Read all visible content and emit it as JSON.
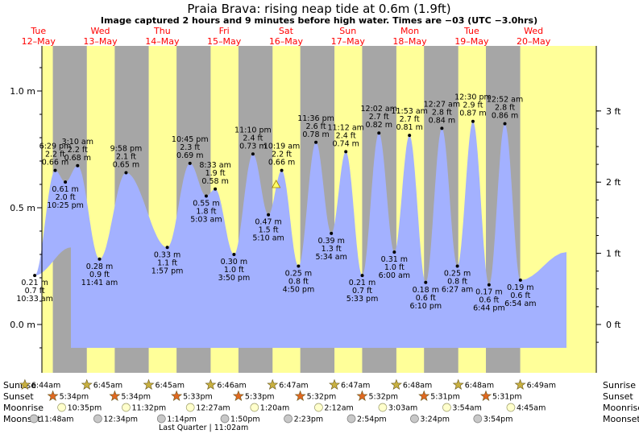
{
  "title": "Praia Brava: rising  neap tide at 0.6m (1.9ft)",
  "subtitle": "Image captured 2 hours and 9 minutes before high water. Times are −03 (UTC −3.0hrs)",
  "colors": {
    "water": "#a3b1ff",
    "day": "#ffff99",
    "night": "#a6a6a6",
    "day_label": "#ff0000",
    "sunrise_star": "#c8b040",
    "sunset_star": "#e06820",
    "moonrise": "#ffffcc",
    "moonset": "#c8c8c8"
  },
  "chart_data": {
    "type": "area",
    "x_start": "2025-05-12 00:00",
    "ylim": [
      -0.1,
      1.18
    ],
    "left_ticks": [
      {
        "v": 1.0,
        "label": "1.0 m"
      },
      {
        "v": 0.5,
        "label": "0.5 m"
      },
      {
        "v": 0.0,
        "label": "0.0 m"
      }
    ],
    "right_ticks": [
      {
        "v": 0.9144,
        "label": "3 ft"
      },
      {
        "v": 0.6096,
        "label": "2 ft"
      },
      {
        "v": 0.3048,
        "label": "1 ft"
      },
      {
        "v": 0.0,
        "label": "0 ft"
      }
    ],
    "days": [
      {
        "dow": "Tue",
        "date": "12–May"
      },
      {
        "dow": "Wed",
        "date": "13–May"
      },
      {
        "dow": "Thu",
        "date": "14–May"
      },
      {
        "dow": "Fri",
        "date": "15–May"
      },
      {
        "dow": "Sat",
        "date": "16–May"
      },
      {
        "dow": "Sun",
        "date": "17–May"
      },
      {
        "dow": "Mon",
        "date": "18–May"
      },
      {
        "dow": "Tue",
        "date": "19–May"
      },
      {
        "dow": "Wed",
        "date": "20–May"
      }
    ],
    "tides": [
      {
        "time": "10:33 am",
        "m": "0.21 m",
        "ft": "0.7 ft",
        "d": 0,
        "h": 10.55,
        "v": 0.21,
        "type": "low"
      },
      {
        "time": "6:29 pm",
        "m": "0.66 m",
        "ft": "2.2 ft",
        "d": 0,
        "h": 18.48,
        "v": 0.66,
        "type": "high"
      },
      {
        "time": "10:25 pm",
        "m": "0.61 m",
        "ft": "2.0 ft",
        "d": 0,
        "h": 22.42,
        "v": 0.61,
        "type": "low"
      },
      {
        "time": "3:10 am",
        "m": "0.68 m",
        "ft": "2.2 ft",
        "d": 1,
        "h": 3.17,
        "v": 0.68,
        "type": "high"
      },
      {
        "time": "11:41 am",
        "m": "0.28 m",
        "ft": "0.9 ft",
        "d": 1,
        "h": 11.68,
        "v": 0.28,
        "type": "low"
      },
      {
        "time": "9:58 pm",
        "m": "0.65 m",
        "ft": "2.1 ft",
        "d": 1,
        "h": 21.97,
        "v": 0.65,
        "type": "high"
      },
      {
        "time": "1:57 pm",
        "m": "0.33 m",
        "ft": "1.1 ft",
        "d": 2,
        "h": 13.95,
        "v": 0.33,
        "type": "low"
      },
      {
        "time": "10:45 pm",
        "m": "0.69 m",
        "ft": "2.3 ft",
        "d": 2,
        "h": 22.75,
        "v": 0.69,
        "type": "high"
      },
      {
        "time": "5:03 am",
        "m": "0.55 m",
        "ft": "1.8 ft",
        "d": 3,
        "h": 5.05,
        "v": 0.55,
        "type": "low"
      },
      {
        "time": "8:33 am",
        "m": "0.58 m",
        "ft": "1.9 ft",
        "d": 3,
        "h": 8.55,
        "v": 0.58,
        "type": "high"
      },
      {
        "time": "3:50 pm",
        "m": "0.30 m",
        "ft": "1.0 ft",
        "d": 3,
        "h": 15.83,
        "v": 0.3,
        "type": "low"
      },
      {
        "time": "11:10 pm",
        "m": "0.73 m",
        "ft": "2.4 ft",
        "d": 3,
        "h": 23.17,
        "v": 0.73,
        "type": "high"
      },
      {
        "time": "5:10 am",
        "m": "0.47 m",
        "ft": "1.5 ft",
        "d": 4,
        "h": 5.17,
        "v": 0.47,
        "type": "low"
      },
      {
        "time": "10:19 am",
        "m": "0.66 m",
        "ft": "2.2 ft",
        "d": 4,
        "h": 10.32,
        "v": 0.66,
        "type": "high"
      },
      {
        "time": "4:50 pm",
        "m": "0.25 m",
        "ft": "0.8 ft",
        "d": 4,
        "h": 16.83,
        "v": 0.25,
        "type": "low"
      },
      {
        "time": "11:36 pm",
        "m": "0.78 m",
        "ft": "2.6 ft",
        "d": 4,
        "h": 23.6,
        "v": 0.78,
        "type": "high"
      },
      {
        "time": "5:34 am",
        "m": "0.39 m",
        "ft": "1.3 ft",
        "d": 5,
        "h": 5.57,
        "v": 0.39,
        "type": "low"
      },
      {
        "time": "11:12 am",
        "m": "0.74 m",
        "ft": "2.4 ft",
        "d": 5,
        "h": 11.2,
        "v": 0.74,
        "type": "high"
      },
      {
        "time": "5:33 pm",
        "m": "0.21 m",
        "ft": "0.7 ft",
        "d": 5,
        "h": 17.55,
        "v": 0.21,
        "type": "low"
      },
      {
        "time": "12:02 am",
        "m": "0.82 m",
        "ft": "2.7 ft",
        "d": 6,
        "h": 0.03,
        "v": 0.82,
        "type": "high"
      },
      {
        "time": "6:00 am",
        "m": "0.31 m",
        "ft": "1.0 ft",
        "d": 6,
        "h": 6.0,
        "v": 0.31,
        "type": "low"
      },
      {
        "time": "11:53 am",
        "m": "0.81 m",
        "ft": "2.7 ft",
        "d": 6,
        "h": 11.88,
        "v": 0.81,
        "type": "high"
      },
      {
        "time": "6:10 pm",
        "m": "0.18 m",
        "ft": "0.6 ft",
        "d": 6,
        "h": 18.17,
        "v": 0.18,
        "type": "low"
      },
      {
        "time": "12:27 am",
        "m": "0.84 m",
        "ft": "2.8 ft",
        "d": 7,
        "h": 0.45,
        "v": 0.84,
        "type": "high"
      },
      {
        "time": "6:27 am",
        "m": "0.25 m",
        "ft": "0.8 ft",
        "d": 7,
        "h": 6.45,
        "v": 0.25,
        "type": "low"
      },
      {
        "time": "12:30 pm",
        "m": "0.87 m",
        "ft": "2.9 ft",
        "d": 7,
        "h": 12.5,
        "v": 0.87,
        "type": "high"
      },
      {
        "time": "6:44 pm",
        "m": "0.17 m",
        "ft": "0.6 ft",
        "d": 7,
        "h": 18.73,
        "v": 0.17,
        "type": "low"
      },
      {
        "time": "12:52 am",
        "m": "0.86 m",
        "ft": "2.8 ft",
        "d": 8,
        "h": 0.87,
        "v": 0.86,
        "type": "high"
      },
      {
        "time": "6:54 am",
        "m": "0.19 m",
        "ft": "0.6 ft",
        "d": 8,
        "h": 6.9,
        "v": 0.19,
        "type": "low"
      }
    ],
    "current": {
      "d": 4,
      "h": 8.17,
      "v": 0.6
    }
  },
  "rows": {
    "sunrise_label": "Sunrise",
    "sunset_label": "Sunset",
    "moonrise_label": "Moonrise",
    "moonset_label": "Moonset",
    "sunrise": [
      {
        "d": 0,
        "h": 6.73,
        "t": "6:44am"
      },
      {
        "d": 1,
        "h": 6.75,
        "t": "6:45am"
      },
      {
        "d": 2,
        "h": 6.75,
        "t": "6:45am"
      },
      {
        "d": 3,
        "h": 6.77,
        "t": "6:46am"
      },
      {
        "d": 4,
        "h": 6.78,
        "t": "6:47am"
      },
      {
        "d": 5,
        "h": 6.78,
        "t": "6:47am"
      },
      {
        "d": 6,
        "h": 6.8,
        "t": "6:48am"
      },
      {
        "d": 7,
        "h": 6.8,
        "t": "6:48am"
      },
      {
        "d": 8,
        "h": 6.82,
        "t": "6:49am"
      }
    ],
    "sunset": [
      {
        "d": 0,
        "h": 17.57,
        "t": "5:34pm"
      },
      {
        "d": 1,
        "h": 17.57,
        "t": "5:34pm"
      },
      {
        "d": 2,
        "h": 17.55,
        "t": "5:33pm"
      },
      {
        "d": 3,
        "h": 17.55,
        "t": "5:33pm"
      },
      {
        "d": 4,
        "h": 17.53,
        "t": "5:32pm"
      },
      {
        "d": 5,
        "h": 17.53,
        "t": "5:32pm"
      },
      {
        "d": 6,
        "h": 17.52,
        "t": "5:31pm"
      },
      {
        "d": 7,
        "h": 17.52,
        "t": "5:31pm"
      }
    ],
    "moonrise": [
      {
        "d": 0,
        "h": 22.58,
        "t": "10:35pm"
      },
      {
        "d": 1,
        "h": 23.53,
        "t": "11:32pm"
      },
      {
        "d": 3,
        "h": 0.45,
        "t": "12:27am"
      },
      {
        "d": 4,
        "h": 1.33,
        "t": "1:20am"
      },
      {
        "d": 5,
        "h": 2.2,
        "t": "2:12am"
      },
      {
        "d": 6,
        "h": 3.05,
        "t": "3:03am"
      },
      {
        "d": 7,
        "h": 3.9,
        "t": "3:54am"
      },
      {
        "d": 8,
        "h": 4.75,
        "t": "4:45am"
      }
    ],
    "moonset": [
      {
        "d": 0,
        "h": 11.8,
        "t": "11:48am"
      },
      {
        "d": 1,
        "h": 12.57,
        "t": "12:34pm"
      },
      {
        "d": 2,
        "h": 13.23,
        "t": "1:14pm"
      },
      {
        "d": 3,
        "h": 13.83,
        "t": "1:50pm"
      },
      {
        "d": 4,
        "h": 14.38,
        "t": "2:23pm"
      },
      {
        "d": 5,
        "h": 14.9,
        "t": "2:54pm"
      },
      {
        "d": 6,
        "h": 15.4,
        "t": "3:24pm"
      },
      {
        "d": 7,
        "h": 15.9,
        "t": "3:54pm"
      }
    ],
    "moon_phase": "Last Quarter | 11:02am"
  }
}
